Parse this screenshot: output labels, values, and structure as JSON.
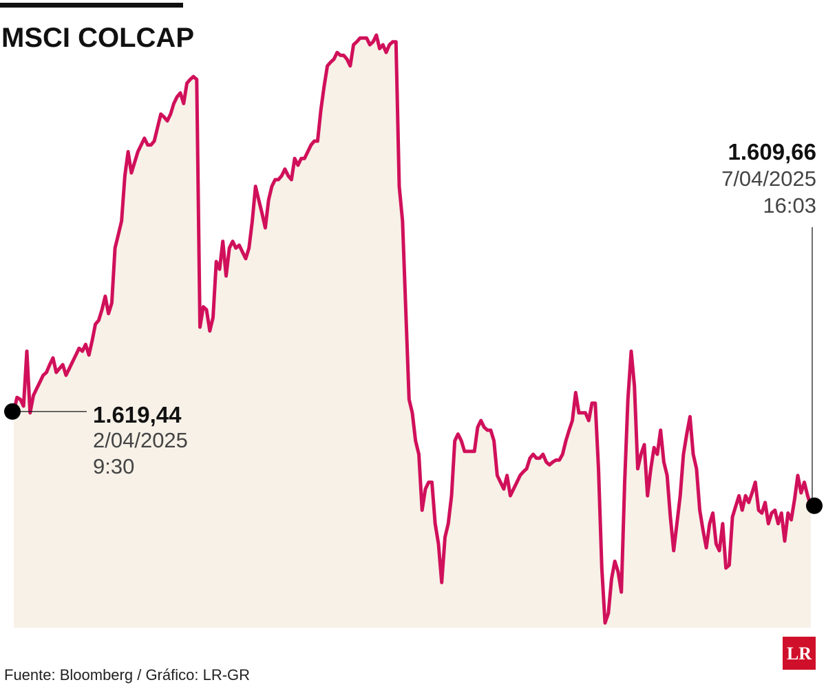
{
  "chart_data": {
    "type": "area",
    "title": "MSCI COLCAP",
    "source": "Fuente: Bloomberg / Gráfico: LR-GR",
    "logo": "LR",
    "color": "#d0105a",
    "fill": "#f7f1e8",
    "ylim": [
      1597,
      1662
    ],
    "values": [
      1619.44,
      1620.9,
      1620.7,
      1620.0,
      1625.7,
      1619.3,
      1621.1,
      1621.8,
      1622.5,
      1623.2,
      1623.5,
      1624.3,
      1625.0,
      1623.5,
      1623.9,
      1624.3,
      1623.2,
      1623.9,
      1624.6,
      1625.3,
      1626.0,
      1625.7,
      1626.4,
      1625.3,
      1626.8,
      1628.5,
      1628.9,
      1630.0,
      1631.4,
      1629.6,
      1630.7,
      1636.4,
      1637.8,
      1639.2,
      1643.9,
      1646.4,
      1644.2,
      1645.3,
      1646.4,
      1647.1,
      1647.8,
      1647.1,
      1647.1,
      1647.5,
      1648.9,
      1650.3,
      1650.0,
      1649.6,
      1650.3,
      1651.4,
      1652.1,
      1652.5,
      1651.4,
      1653.5,
      1653.9,
      1654.2,
      1653.9,
      1628.2,
      1630.3,
      1630.0,
      1627.8,
      1629.2,
      1635.0,
      1634.2,
      1637.1,
      1633.5,
      1636.4,
      1637.1,
      1636.4,
      1636.7,
      1636.0,
      1635.3,
      1636.4,
      1639.2,
      1642.8,
      1641.4,
      1640.0,
      1638.5,
      1641.4,
      1642.8,
      1643.5,
      1643.5,
      1643.9,
      1644.6,
      1643.9,
      1643.5,
      1645.7,
      1645.0,
      1645.7,
      1645.7,
      1646.4,
      1647.1,
      1647.5,
      1647.5,
      1650.7,
      1653.2,
      1655.3,
      1655.7,
      1656.0,
      1656.7,
      1656.4,
      1656.4,
      1656.0,
      1655.3,
      1657.5,
      1657.8,
      1658.2,
      1658.2,
      1658.2,
      1657.5,
      1657.8,
      1658.5,
      1657.1,
      1657.5,
      1656.7,
      1657.5,
      1657.8,
      1657.8,
      1642.8,
      1639.2,
      1630.0,
      1620.7,
      1619.3,
      1616.4,
      1615.0,
      1609.2,
      1611.4,
      1612.1,
      1612.1,
      1607.8,
      1605.7,
      1601.7,
      1606.4,
      1607.8,
      1610.7,
      1616.4,
      1617.1,
      1616.4,
      1615.3,
      1615.3,
      1615.3,
      1615.3,
      1617.8,
      1618.5,
      1617.8,
      1617.5,
      1617.5,
      1616.4,
      1612.8,
      1612.1,
      1611.4,
      1612.8,
      1610.7,
      1611.4,
      1612.1,
      1612.8,
      1613.2,
      1613.5,
      1614.6,
      1615.0,
      1614.6,
      1614.6,
      1615.0,
      1614.2,
      1613.9,
      1614.2,
      1614.4,
      1614.4,
      1615.0,
      1616.4,
      1617.5,
      1618.5,
      1621.4,
      1619.3,
      1619.3,
      1619.3,
      1618.5,
      1620.3,
      1620.3,
      1613.5,
      1603.2,
      1597.5,
      1598.5,
      1602.1,
      1603.9,
      1602.8,
      1600.7,
      1612.1,
      1620.7,
      1625.7,
      1622.1,
      1613.5,
      1615.0,
      1616.0,
      1610.7,
      1613.5,
      1615.7,
      1615.0,
      1617.5,
      1614.2,
      1612.8,
      1608.5,
      1605.0,
      1607.8,
      1610.7,
      1615.0,
      1617.1,
      1618.9,
      1615.0,
      1613.5,
      1609.2,
      1607.1,
      1605.3,
      1607.8,
      1608.9,
      1605.7,
      1605.0,
      1607.8,
      1603.2,
      1603.5,
      1608.5,
      1609.6,
      1610.7,
      1609.2,
      1610.7,
      1610.0,
      1611.0,
      1612.1,
      1609.2,
      1608.9,
      1610.0,
      1607.8,
      1608.9,
      1609.2,
      1607.8,
      1608.9,
      1606.0,
      1608.9,
      1608.2,
      1610.3,
      1612.8,
      1611.0,
      1612.1,
      1610.7,
      1609.66
    ],
    "annotations": [
      {
        "value": 1619.44,
        "label": "1.619,44",
        "date": "2/04/2025",
        "time": "9:30"
      },
      {
        "value": 1609.66,
        "label": "1.609,66",
        "date": "7/04/2025",
        "time": "16:03"
      }
    ]
  }
}
